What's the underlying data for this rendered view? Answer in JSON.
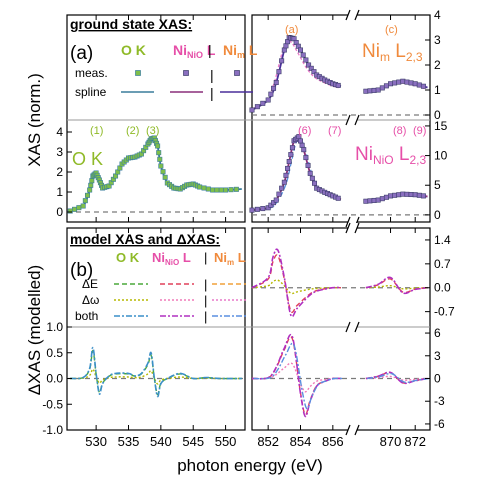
{
  "colors": {
    "ok": "#8fba28",
    "ninio": "#e64fa8",
    "nim": "#f08a3c",
    "ok_spline": "#3a7d9c",
    "ninio_spline": "#8a2f7a",
    "nim_spline": "#4a2f9a",
    "meas_face": "#8a6fbf",
    "meas_edge": "#3c3c6a",
    "ok_meas_face": "#7fbf4a",
    "dE_ok": "#4aa83a",
    "dW_ok": "#b5b800",
    "both_ok": "#3a8fc8",
    "dE_ni": "#e0405a",
    "dW_ni": "#f07ab8",
    "both_ni": "#b030c0",
    "dE_nim": "#f0a03a",
    "dW_nim": "#e878c8",
    "both_nim": "#5a8fe0",
    "zero_line": "#7a7a7a"
  },
  "labels": {
    "xlabel": "photon energy (eV)",
    "ylabel_top": "XAS (norm.)",
    "ylabel_bottom": "ΔXAS (modelled)",
    "section_top": "ground state XAS:",
    "section_bottom": "model XAS and ΔXAS:",
    "panel_a": "(a)",
    "panel_b": "(b)",
    "ok_label": "O K",
    "ninio_label_main": "Ni",
    "ninio_label_sub": "NiO",
    "ninio_label_tail": " L",
    "nim_label_main": "Ni",
    "nim_label_sub": "m",
    "nim_label_tail": " L",
    "meas": "meas.",
    "spline": "spline",
    "dE": "ΔE",
    "dW": "Δω",
    "both": "both",
    "sep": "|",
    "nim_big_main": "Ni",
    "nim_big_sub": "m",
    "nim_big_tail": " L",
    "nim_big_sub2": "2,3",
    "ninio_big_main": "Ni",
    "ninio_big_sub": "NiO",
    "ninio_big_tail": " L",
    "ninio_big_sub2": "2,3",
    "ok_big": "O K",
    "feat_a": "(a)",
    "feat_c": "(c)",
    "feat_1": "(1)",
    "feat_2": "(2)",
    "feat_3": "(3)",
    "feat_6": "(6)",
    "feat_7": "(7)",
    "feat_8": "(8)",
    "feat_9": "(9)"
  },
  "chart_data": [
    {
      "id": "ok_xas",
      "type": "line",
      "title": "",
      "xlabel": "photon energy (eV)",
      "ylabel": "XAS (norm.)",
      "xlim": [
        525.5,
        553
      ],
      "ylim": [
        -0.5,
        4.6
      ],
      "xticks": [
        530,
        535,
        540,
        545,
        550
      ],
      "yticks": [
        0,
        1,
        2,
        3,
        4
      ],
      "series": [
        {
          "name": "meas.",
          "x": [
            526,
            528,
            529,
            529.5,
            530,
            530.5,
            531,
            532,
            533,
            534,
            535,
            536,
            537,
            538,
            538.5,
            539,
            539.5,
            540,
            541,
            542,
            543,
            544,
            545,
            546,
            548,
            550,
            552.5
          ],
          "values": [
            0.05,
            0.3,
            1.1,
            1.8,
            1.95,
            1.6,
            1.2,
            1.3,
            1.8,
            2.4,
            2.7,
            2.75,
            2.9,
            3.4,
            3.65,
            3.7,
            3.3,
            2.3,
            1.45,
            1.2,
            1.15,
            1.35,
            1.4,
            1.25,
            1.1,
            1.1,
            1.15
          ]
        }
      ]
    },
    {
      "id": "ni_xas",
      "type": "line",
      "xlabel": "photon energy (eV)",
      "ylim": [
        0,
        15
      ],
      "yticks": [
        0,
        5,
        10,
        15
      ],
      "xticks": [
        852,
        854,
        856,
        870,
        872
      ],
      "series": [
        {
          "name": "NiNiO meas.",
          "x": [
            851,
            852,
            852.5,
            853,
            853.3,
            853.6,
            853.9,
            854.2,
            854.6,
            855,
            855.5,
            856,
            856.5,
            868,
            869,
            870,
            871,
            872,
            873
          ],
          "values": [
            0.8,
            1.2,
            2.5,
            5.5,
            9,
            12.5,
            13.2,
            11,
            7,
            4.5,
            3.8,
            3.2,
            2.6,
            2.3,
            2.5,
            3.2,
            3.5,
            3.4,
            3.1
          ]
        }
      ]
    },
    {
      "id": "nim_xas",
      "type": "line",
      "ylim": [
        0,
        4
      ],
      "yticks": [
        0,
        1,
        2,
        3,
        4
      ],
      "series": [
        {
          "name": "Nim meas.",
          "x": [
            851,
            852,
            852.5,
            853,
            853.3,
            853.6,
            854,
            854.5,
            855,
            855.5,
            856,
            856.5,
            868,
            869,
            870,
            871,
            872,
            873
          ],
          "values": [
            0.2,
            0.6,
            1.3,
            2.6,
            3.1,
            3.05,
            2.6,
            2.0,
            1.6,
            1.4,
            1.25,
            1.15,
            0.95,
            1.0,
            1.25,
            1.35,
            1.25,
            1.1
          ]
        }
      ]
    },
    {
      "id": "ok_dxas",
      "type": "line",
      "ylim": [
        -1.0,
        1.0
      ],
      "yticks": [
        -1.0,
        -0.5,
        0.0,
        0.5,
        1.0
      ],
      "series": [
        {
          "name": "both",
          "x": [
            526,
            528,
            529,
            529.5,
            530,
            530.5,
            531,
            532,
            533,
            535,
            536,
            537,
            538,
            538.5,
            539,
            539.5,
            540,
            541,
            543,
            545,
            547,
            549,
            552.5
          ],
          "values": [
            0,
            0.02,
            0.2,
            0.6,
            0.1,
            -0.3,
            -0.1,
            0.05,
            0.1,
            0.1,
            0.05,
            0.1,
            0.3,
            0.5,
            0.0,
            -0.35,
            -0.1,
            0.0,
            0.1,
            0.0,
            0.02,
            0.0,
            0.0
          ]
        }
      ]
    },
    {
      "id": "ni_dxas",
      "type": "line",
      "ylim": [
        -6.8,
        6.8
      ],
      "yticks": [
        6,
        3,
        0,
        -3,
        -6
      ],
      "series": [
        {
          "name": "NiNiO both",
          "x": [
            851,
            852,
            852.5,
            853,
            853.5,
            854,
            854.3,
            854.6,
            855,
            855.5,
            856,
            856.5,
            868,
            869,
            870,
            871,
            872,
            873
          ],
          "values": [
            0,
            0.1,
            1.5,
            4,
            5.5,
            -2,
            -5,
            -3,
            -1,
            -0.4,
            0,
            0,
            0,
            0.3,
            0.8,
            -0.6,
            -0.3,
            0
          ]
        }
      ]
    },
    {
      "id": "nim_dxas",
      "type": "line",
      "ylim": [
        -1.15,
        1.75
      ],
      "yticks": [
        1.4,
        0.7,
        0.0,
        -0.7
      ],
      "series": [
        {
          "name": "Nim both",
          "x": [
            851,
            852,
            852.3,
            852.6,
            853,
            853.4,
            853.8,
            854.5,
            855,
            856,
            856.5,
            868,
            869,
            870,
            871,
            872,
            873
          ],
          "values": [
            0,
            0.3,
            0.9,
            1.1,
            0.3,
            -0.8,
            -0.6,
            -0.25,
            -0.1,
            0,
            0,
            0,
            0.1,
            0.3,
            -0.15,
            -0.05,
            0
          ]
        }
      ]
    }
  ]
}
